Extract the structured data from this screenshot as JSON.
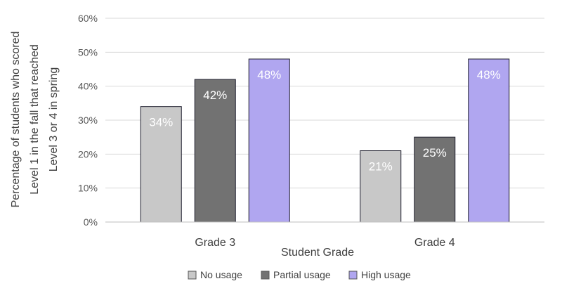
{
  "chart_data": {
    "type": "bar",
    "categories": [
      "Grade 3",
      "Grade 4"
    ],
    "series": [
      {
        "name": "No usage",
        "values": [
          34,
          21
        ],
        "color": "#c8c8c8"
      },
      {
        "name": "Partial usage",
        "values": [
          42,
          25
        ],
        "color": "#727272"
      },
      {
        "name": "High usage",
        "values": [
          48,
          48
        ],
        "color": "#b0a6f0"
      }
    ],
    "data_labels": [
      [
        "34%",
        "21%"
      ],
      [
        "42%",
        "25%"
      ],
      [
        "48%",
        "48%"
      ]
    ],
    "yticks": [
      0,
      10,
      20,
      30,
      40,
      50,
      60
    ],
    "ytick_labels": [
      "0%",
      "10%",
      "20%",
      "30%",
      "40%",
      "50%",
      "60%"
    ],
    "ylim": [
      0,
      60
    ],
    "xlabel": "Student Grade",
    "ylabel_lines": [
      "Percentage of students who scored",
      "Level 1 in the fall that reached",
      "Level 3 or 4 in spring"
    ],
    "grid": true,
    "legend_position": "bottom"
  }
}
